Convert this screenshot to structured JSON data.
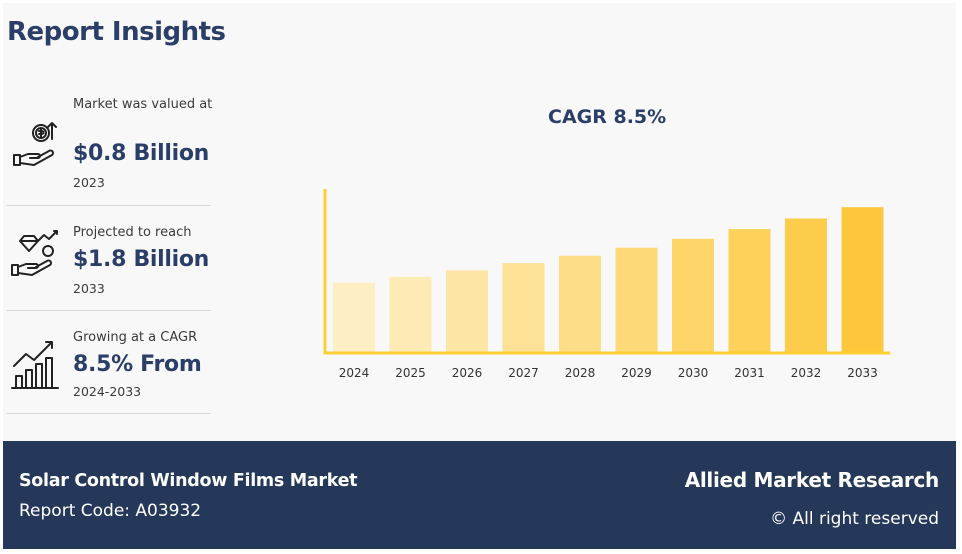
{
  "title": "Report Insights",
  "stats": [
    {
      "icon": "money-hand-icon",
      "label": "Market was valued at",
      "value": "$0.8 Billion",
      "year": "2023"
    },
    {
      "icon": "diamond-hand-icon",
      "label": "Projected to reach",
      "value": "$1.8 Billion",
      "year": "2033"
    },
    {
      "icon": "growth-chart-icon",
      "label": "Growing at a CAGR",
      "value": "8.5% From",
      "year": "2024-2033"
    }
  ],
  "chart_data": {
    "type": "bar",
    "title": "CAGR 8.5%",
    "categories": [
      "2024",
      "2025",
      "2026",
      "2027",
      "2028",
      "2029",
      "2030",
      "2031",
      "2032",
      "2033"
    ],
    "values": [
      0.87,
      0.94,
      1.02,
      1.11,
      1.2,
      1.3,
      1.41,
      1.53,
      1.66,
      1.8
    ],
    "ylim": [
      0,
      2.0
    ],
    "colors": [
      "#fdeec4",
      "#fdeab5",
      "#fde5a5",
      "#fde196",
      "#fddd87",
      "#fdd978",
      "#fdd569",
      "#fdd15a",
      "#fdcc4b",
      "#fdc73c"
    ],
    "axis_color": "#fbd034",
    "grid": false
  },
  "footer": {
    "market": "Solar Control Window Films Market",
    "report_code": "Report Code: A03932",
    "brand": "Allied Market Research",
    "rights": "© All right reserved"
  }
}
